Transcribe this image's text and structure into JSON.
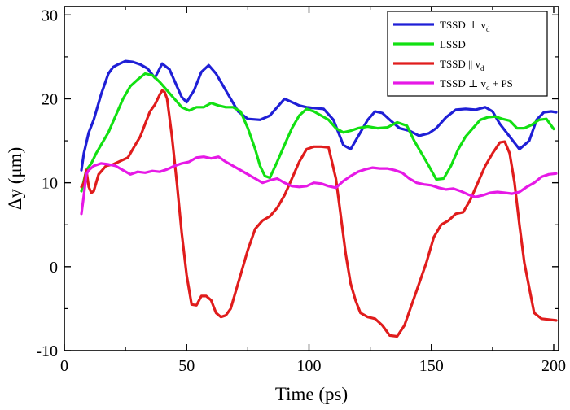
{
  "chart_data": {
    "type": "line",
    "title": "",
    "xlabel": "Time (ps)",
    "ylabel": "Δy (μm)",
    "xlim": [
      0,
      202
    ],
    "ylim": [
      -10,
      31
    ],
    "x_ticks": [
      0,
      50,
      100,
      150,
      200
    ],
    "x_tick_labels": [
      "0",
      "50",
      "100",
      "150",
      "200"
    ],
    "y_ticks": [
      -10,
      0,
      10,
      20,
      30
    ],
    "y_tick_labels": [
      "-10",
      "0",
      "10",
      "20",
      "30"
    ],
    "grid": false,
    "legend": {
      "position": "top-right",
      "entries": [
        {
          "text": "TSSD ⊥ v",
          "sub": "d",
          "suffix": ""
        },
        {
          "text": "LSSD",
          "sub": "",
          "suffix": ""
        },
        {
          "text": "TSSD || v",
          "sub": "d",
          "suffix": ""
        },
        {
          "text": "TSSD ⊥ v",
          "sub": "d",
          "suffix": " + PS"
        }
      ]
    },
    "series": [
      {
        "name": "TSSD ⊥ vd",
        "color": "#1f1fd6",
        "x": [
          7,
          8,
          10,
          12,
          15,
          18,
          20,
          22,
          25,
          28,
          31,
          34,
          37,
          40,
          43,
          46,
          48,
          50,
          53,
          56,
          59,
          62,
          65,
          68,
          71,
          75,
          80,
          84,
          87,
          90,
          93,
          96,
          99,
          102,
          106,
          110,
          114,
          117,
          120,
          124,
          127,
          130,
          133,
          137,
          141,
          145,
          149,
          152,
          156,
          160,
          164,
          168,
          172,
          175,
          178,
          182,
          186,
          190,
          193,
          196,
          199,
          201
        ],
        "y": [
          11.5,
          13.5,
          16,
          17.5,
          20.5,
          23,
          23.8,
          24.1,
          24.5,
          24.4,
          24.1,
          23.6,
          22.5,
          24.2,
          23.5,
          21.5,
          20.2,
          19.6,
          21,
          23.2,
          24,
          23,
          21.5,
          20,
          18.5,
          17.6,
          17.5,
          18,
          19,
          20,
          19.6,
          19.2,
          19,
          18.9,
          18.8,
          17.5,
          14.5,
          14,
          15.5,
          17.5,
          18.5,
          18.3,
          17.5,
          16.5,
          16.2,
          15.6,
          15.9,
          16.5,
          17.8,
          18.7,
          18.8,
          18.7,
          19,
          18.5,
          17,
          15.5,
          14,
          15,
          17.5,
          18.4,
          18.5,
          18.4
        ]
      },
      {
        "name": "LSSD",
        "color": "#12e012",
        "x": [
          7,
          9,
          11,
          13,
          15,
          18,
          21,
          24,
          27,
          30,
          33,
          36,
          39,
          42,
          45,
          48,
          51,
          54,
          57,
          60,
          63,
          66,
          69,
          72,
          75,
          78,
          80,
          82,
          84,
          87,
          90,
          93,
          96,
          99,
          102,
          105,
          108,
          111,
          114,
          117,
          120,
          124,
          128,
          132,
          136,
          140,
          143,
          146,
          149,
          152,
          155,
          158,
          161,
          164,
          167,
          170,
          173,
          176,
          179,
          182,
          185,
          188,
          191,
          194,
          197,
          200
        ],
        "y": [
          9,
          11.5,
          12.3,
          13.5,
          14.5,
          16,
          18,
          20,
          21.5,
          22.3,
          23,
          22.8,
          22,
          21,
          20,
          19,
          18.6,
          19,
          19,
          19.5,
          19.2,
          19,
          19,
          18.5,
          16.5,
          14,
          12,
          10.8,
          10.6,
          12.5,
          14.5,
          16.5,
          18,
          18.8,
          18.5,
          18,
          17.5,
          16.5,
          16,
          16.2,
          16.5,
          16.7,
          16.5,
          16.6,
          17.2,
          16.8,
          15,
          13.5,
          12,
          10.4,
          10.5,
          12,
          14,
          15.5,
          16.5,
          17.5,
          17.8,
          17.9,
          17.6,
          17.4,
          16.5,
          16.5,
          16.9,
          17.5,
          17.6,
          16.4
        ]
      },
      {
        "name": "TSSD || vd",
        "color": "#e01c1c",
        "x": [
          7,
          8,
          9,
          10,
          11,
          12,
          14,
          17,
          20,
          23,
          26,
          29,
          31,
          33,
          35,
          37,
          39,
          40,
          41,
          42,
          44,
          46,
          48,
          50,
          52,
          54,
          56,
          58,
          60,
          62,
          64,
          66,
          68,
          70,
          72,
          75,
          78,
          81,
          84,
          87,
          90,
          93,
          96,
          99,
          102,
          105,
          108,
          111,
          113,
          115,
          117,
          119,
          121,
          124,
          127,
          130,
          133,
          136,
          139,
          142,
          145,
          148,
          151,
          154,
          157,
          160,
          163,
          166,
          169,
          172,
          175,
          178,
          180,
          182,
          184,
          186,
          188,
          190,
          192,
          195,
          198,
          201
        ],
        "y": [
          9.5,
          10,
          11.5,
          9.5,
          8.8,
          9,
          11,
          12,
          12.2,
          12.6,
          13,
          14.5,
          15.5,
          17,
          18.5,
          19.3,
          20.5,
          21,
          20.8,
          20,
          15.5,
          10,
          4,
          -1,
          -4.5,
          -4.6,
          -3.5,
          -3.5,
          -4,
          -5.5,
          -6,
          -5.8,
          -5,
          -3,
          -1,
          2,
          4.5,
          5.5,
          6,
          7,
          8.5,
          10.5,
          12.5,
          14,
          14.3,
          14.3,
          14.2,
          10.5,
          6,
          1.5,
          -2,
          -4,
          -5.5,
          -6,
          -6.2,
          -7,
          -8.2,
          -8.3,
          -7,
          -4.5,
          -2,
          0.5,
          3.5,
          5,
          5.5,
          6.3,
          6.5,
          8,
          10,
          12,
          13.5,
          14.8,
          14.9,
          13.5,
          10,
          5,
          0.5,
          -2.5,
          -5.5,
          -6.2,
          -6.3,
          -6.4
        ]
      },
      {
        "name": "TSSD ⊥ vd + PS",
        "color": "#e619e6",
        "x": [
          7,
          8,
          9,
          10,
          12,
          15,
          18,
          21,
          24,
          27,
          30,
          33,
          36,
          39,
          42,
          45,
          48,
          51,
          54,
          57,
          60,
          63,
          66,
          69,
          72,
          75,
          78,
          81,
          84,
          87,
          90,
          93,
          96,
          99,
          102,
          105,
          108,
          111,
          114,
          117,
          120,
          123,
          126,
          129,
          132,
          135,
          138,
          141,
          144,
          147,
          150,
          153,
          156,
          159,
          162,
          165,
          168,
          171,
          174,
          177,
          180,
          183,
          186,
          189,
          192,
          195,
          198,
          201
        ],
        "y": [
          6.3,
          8.5,
          11,
          11.5,
          12,
          12.3,
          12.2,
          12,
          11.5,
          11,
          11.3,
          11.2,
          11.4,
          11.3,
          11.6,
          12,
          12.3,
          12.5,
          13,
          13.1,
          12.9,
          13.1,
          12.5,
          12,
          11.5,
          11,
          10.5,
          10,
          10.3,
          10.5,
          10,
          9.6,
          9.5,
          9.6,
          10,
          9.9,
          9.6,
          9.4,
          10.2,
          10.8,
          11.3,
          11.6,
          11.8,
          11.7,
          11.7,
          11.5,
          11.2,
          10.5,
          10,
          9.8,
          9.7,
          9.4,
          9.2,
          9.3,
          9,
          8.6,
          8.3,
          8.5,
          8.8,
          8.9,
          8.8,
          8.7,
          8.9,
          9.5,
          10,
          10.7,
          11,
          11.1
        ]
      }
    ]
  }
}
